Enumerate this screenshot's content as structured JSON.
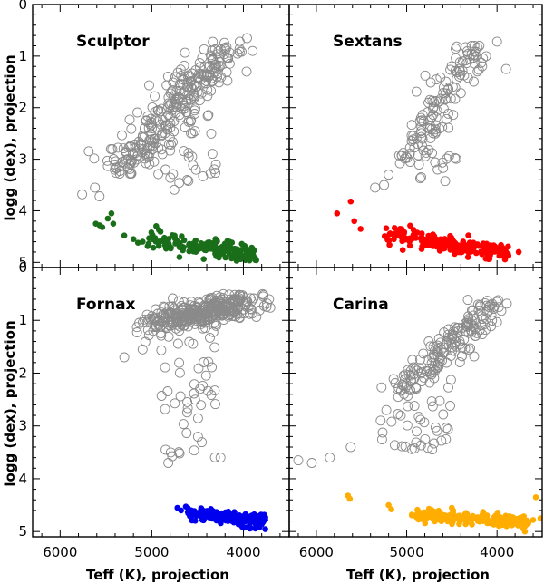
{
  "chart_data": {
    "type": "scatter",
    "xlabel": "Teff (K), projection",
    "ylabel": "logg (dex), projection",
    "xlim": [
      6300,
      3500
    ],
    "ylim": [
      5.1,
      0
    ],
    "xticks": [
      6000,
      5000,
      4000
    ],
    "yticks": [
      0,
      1,
      2,
      3,
      4,
      5
    ],
    "panels": [
      {
        "name": "Sculptor",
        "dwarf_color": "#1a6e1a",
        "giant_params": {
          "seed": 11,
          "n": 260,
          "teffHi": 4150,
          "teffLo": 5350,
          "loggHi": 0.7,
          "loggLo": 3.2,
          "spread": 140,
          "loggMin": 0.6,
          "scatterN": 45,
          "sTeff": [
            4300,
            5000
          ],
          "sLogg": [
            1.5,
            3.6
          ],
          "extra": [
            [
              5760,
              3.68
            ],
            [
              5620,
              3.55
            ],
            [
              5570,
              3.72
            ],
            [
              4700,
              3.46
            ],
            [
              4600,
              3.42
            ],
            [
              4560,
              2.95
            ],
            [
              4300,
              3.1
            ],
            [
              4040,
              0.72
            ],
            [
              3960,
              0.65
            ],
            [
              3900,
              0.9
            ]
          ]
        },
        "dwarf_params": {
          "seed": 21,
          "n": 170,
          "teffA": 5050,
          "teffB": 3850,
          "loggA": 4.55,
          "loggB": 4.85,
          "spread": 0.09,
          "extra": [
            [
              5610,
              4.25
            ],
            [
              5570,
              4.28
            ],
            [
              5540,
              4.32
            ],
            [
              5480,
              4.15
            ],
            [
              5440,
              4.05
            ],
            [
              5420,
              4.25
            ],
            [
              5300,
              4.48
            ],
            [
              5200,
              4.55
            ],
            [
              5150,
              4.62
            ],
            [
              5100,
              4.6
            ]
          ]
        }
      },
      {
        "name": "Sextans",
        "dwarf_color": "#ff0000",
        "giant_params": {
          "seed": 12,
          "n": 110,
          "teffHi": 4250,
          "teffLo": 5050,
          "loggHi": 0.8,
          "loggLo": 3.0,
          "spread": 120,
          "loggMin": 0.75,
          "scatterN": 28,
          "sTeff": [
            4450,
            5000
          ],
          "sLogg": [
            2.0,
            3.5
          ],
          "extra": [
            [
              5350,
              3.55
            ],
            [
              5200,
              3.3
            ],
            [
              5250,
              3.5
            ],
            [
              4000,
              0.72
            ],
            [
              3900,
              1.25
            ],
            [
              4120,
              1.0
            ]
          ]
        },
        "dwarf_params": {
          "seed": 22,
          "n": 190,
          "teffA": 5250,
          "teffB": 3850,
          "loggA": 4.45,
          "loggB": 4.82,
          "spread": 0.08,
          "extra": [
            [
              5770,
              4.05
            ],
            [
              5620,
              3.82
            ],
            [
              5580,
              4.2
            ],
            [
              5510,
              4.35
            ],
            [
              3760,
              4.8
            ]
          ]
        }
      },
      {
        "name": "Fornax",
        "dwarf_color": "#0000ee",
        "giant_params": {
          "seed": 13,
          "n": 340,
          "teffHi": 3900,
          "teffLo": 4950,
          "loggHi": 0.65,
          "loggLo": 1.05,
          "spread": 110,
          "loggMin": 0.5,
          "scatterN": 45,
          "sTeff": [
            4300,
            4900
          ],
          "sLogg": [
            1.2,
            3.7
          ],
          "extra": [
            [
              5300,
              1.7
            ],
            [
              5100,
              1.55
            ],
            [
              4850,
              3.45
            ],
            [
              4820,
              3.7
            ],
            [
              4250,
              3.6
            ],
            [
              4050,
              0.65
            ],
            [
              3780,
              0.52
            ],
            [
              3720,
              0.6
            ]
          ]
        },
        "dwarf_params": {
          "seed": 23,
          "n": 200,
          "teffA": 4650,
          "teffB": 3760,
          "loggA": 4.65,
          "loggB": 4.82,
          "spread": 0.06,
          "extra": [
            [
              4720,
              4.55
            ],
            [
              4680,
              4.6
            ]
          ]
        }
      },
      {
        "name": "Carina",
        "dwarf_color": "#ffad00",
        "giant_params": {
          "seed": 14,
          "n": 170,
          "teffHi": 4050,
          "teffLo": 5050,
          "loggHi": 0.7,
          "loggLo": 2.4,
          "spread": 120,
          "loggMin": 0.6,
          "scatterN": 40,
          "sTeff": [
            4500,
            5300
          ],
          "sLogg": [
            2.2,
            3.5
          ],
          "extra": [
            [
              6200,
              3.65
            ],
            [
              6050,
              3.7
            ],
            [
              5850,
              3.6
            ],
            [
              5620,
              3.4
            ],
            [
              4000,
              0.65
            ],
            [
              3980,
              0.75
            ]
          ]
        },
        "dwarf_params": {
          "seed": 24,
          "n": 230,
          "teffA": 4950,
          "teffB": 3650,
          "loggA": 4.68,
          "loggB": 4.82,
          "spread": 0.06,
          "extra": [
            [
              5650,
              4.32
            ],
            [
              5630,
              4.38
            ],
            [
              5200,
              4.5
            ],
            [
              5170,
              4.58
            ],
            [
              3570,
              4.35
            ],
            [
              3520,
              4.75
            ],
            [
              3600,
              4.78
            ]
          ]
        }
      }
    ]
  }
}
